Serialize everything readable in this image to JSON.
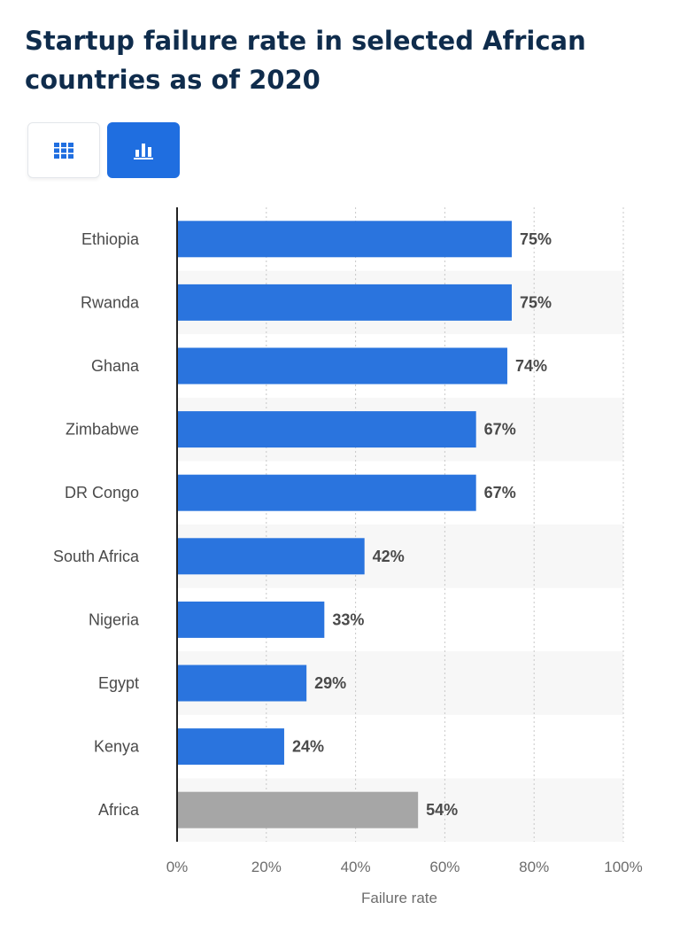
{
  "title": "Startup failure rate in selected African countries as of 2020",
  "view_toggle": {
    "table_icon": "grid-icon",
    "chart_icon": "bar-chart-icon",
    "active": "chart"
  },
  "colors": {
    "bar": "#2a74de",
    "highlight_bar": "#a6a6a6",
    "title": "#0f2c4c"
  },
  "chart_data": {
    "type": "bar",
    "orientation": "horizontal",
    "categories": [
      "Ethiopia",
      "Rwanda",
      "Ghana",
      "Zimbabwe",
      "DR Congo",
      "South Africa",
      "Nigeria",
      "Egypt",
      "Kenya",
      "Africa"
    ],
    "values": [
      75,
      75,
      74,
      67,
      67,
      42,
      33,
      29,
      24,
      54
    ],
    "value_labels": [
      "75%",
      "75%",
      "74%",
      "67%",
      "67%",
      "42%",
      "33%",
      "29%",
      "24%",
      "54%"
    ],
    "highlight_category": "Africa",
    "xlabel": "Failure rate",
    "xlim": [
      0,
      100
    ],
    "xticks": [
      0,
      20,
      40,
      60,
      80,
      100
    ],
    "xtick_labels": [
      "0%",
      "20%",
      "40%",
      "60%",
      "80%",
      "100%"
    ],
    "grid": true,
    "legend": "none"
  }
}
